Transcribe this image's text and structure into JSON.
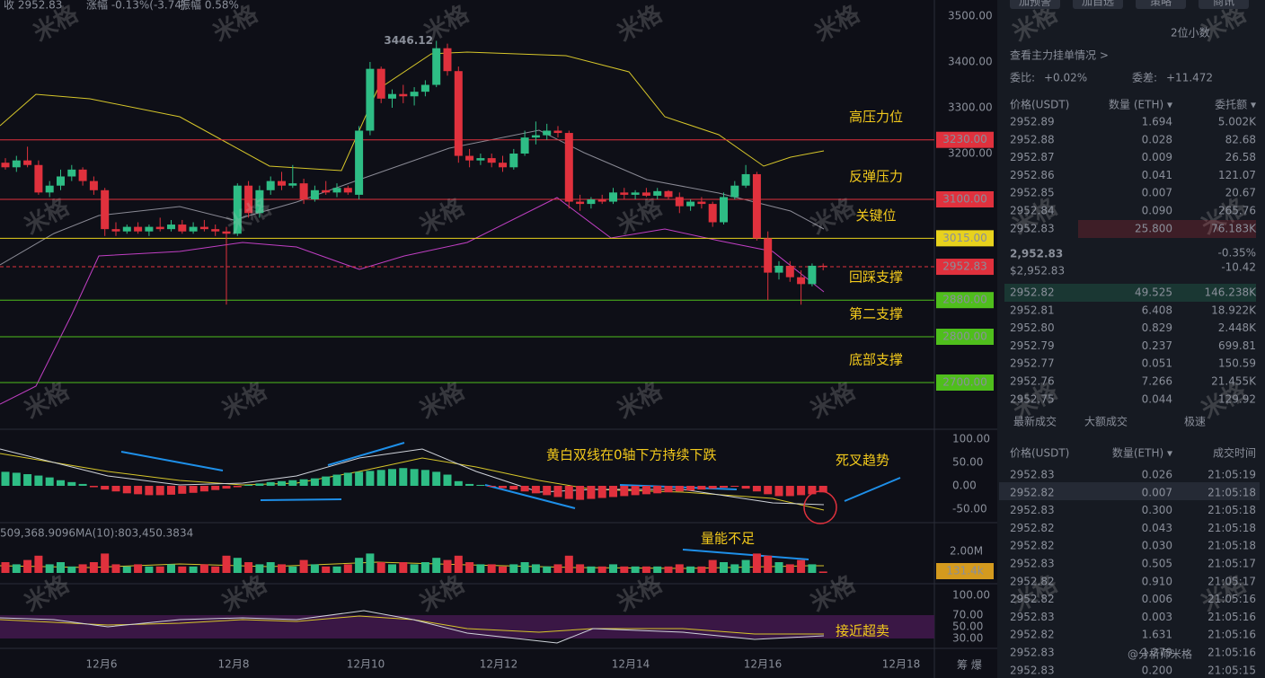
{
  "header": {
    "close": "收 2952.83",
    "change": "涨幅 -0.13%(-3.74)",
    "amplitude": "振幅 0.58%"
  },
  "price_chart": {
    "yticks": [
      {
        "value": 3500,
        "label": "3500.00"
      },
      {
        "value": 3400,
        "label": "3400.00"
      },
      {
        "value": 3300,
        "label": "3300.00"
      },
      {
        "value": 3200,
        "label": "3200.00"
      }
    ],
    "levels": [
      {
        "value": 3230,
        "label": "3230.00",
        "note": "高压力位",
        "color": "#e0313d"
      },
      {
        "value": 3100,
        "label": "3100.00",
        "note": "反弹压力",
        "color": "#e0313d"
      },
      {
        "value": 3015,
        "label": "3015.00",
        "note": "关键位",
        "color": "#e8d21d"
      },
      {
        "value": 2880,
        "label": "2880.00",
        "note": "回踩支撑",
        "color": "#4fbe1c"
      },
      {
        "value": 2800,
        "label": "2800.00",
        "note": "第二支撑",
        "color": "#4fbe1c"
      },
      {
        "value": 2700,
        "label": "2700.00",
        "note": "底部支撑",
        "color": "#4fbe1c"
      }
    ],
    "last_price": 2952.83,
    "dates": [
      "12月6",
      "12月8",
      "12月10",
      "12月12",
      "12月14",
      "12月16",
      "12月18"
    ],
    "candles": [
      [
        3180,
        3190,
        3165,
        3170
      ],
      [
        3170,
        3195,
        3160,
        3185
      ],
      [
        3185,
        3215,
        3170,
        3175
      ],
      [
        3175,
        3185,
        3110,
        3115
      ],
      [
        3115,
        3140,
        3105,
        3130
      ],
      [
        3130,
        3165,
        3120,
        3150
      ],
      [
        3150,
        3175,
        3140,
        3165
      ],
      [
        3165,
        3170,
        3130,
        3140
      ],
      [
        3140,
        3150,
        3110,
        3120
      ],
      [
        3120,
        3125,
        3020,
        3035
      ],
      [
        3035,
        3050,
        3020,
        3030
      ],
      [
        3030,
        3045,
        3025,
        3040
      ],
      [
        3040,
        3050,
        3025,
        3030
      ],
      [
        3030,
        3045,
        3020,
        3040
      ],
      [
        3040,
        3060,
        3030,
        3035
      ],
      [
        3035,
        3055,
        3030,
        3045
      ],
      [
        3045,
        3055,
        3025,
        3030
      ],
      [
        3030,
        3050,
        3025,
        3040
      ],
      [
        3040,
        3055,
        3030,
        3035
      ],
      [
        3035,
        3045,
        3020,
        3030
      ],
      [
        3030,
        3040,
        2870,
        3025
      ],
      [
        3025,
        3135,
        3020,
        3130
      ],
      [
        3130,
        3140,
        3060,
        3070
      ],
      [
        3070,
        3130,
        3060,
        3120
      ],
      [
        3120,
        3150,
        3110,
        3140
      ],
      [
        3140,
        3160,
        3120,
        3130
      ],
      [
        3130,
        3175,
        3125,
        3135
      ],
      [
        3135,
        3145,
        3090,
        3100
      ],
      [
        3100,
        3130,
        3095,
        3120
      ],
      [
        3120,
        3140,
        3110,
        3115
      ],
      [
        3115,
        3135,
        3105,
        3125
      ],
      [
        3125,
        3130,
        3110,
        3115
      ],
      [
        3110,
        3260,
        3100,
        3250
      ],
      [
        3250,
        3400,
        3240,
        3385
      ],
      [
        3385,
        3390,
        3310,
        3320
      ],
      [
        3320,
        3340,
        3300,
        3330
      ],
      [
        3330,
        3350,
        3310,
        3325
      ],
      [
        3325,
        3345,
        3305,
        3335
      ],
      [
        3335,
        3360,
        3325,
        3350
      ],
      [
        3350,
        3446.12,
        3345,
        3430
      ],
      [
        3430,
        3440,
        3370,
        3380
      ],
      [
        3380,
        3390,
        3180,
        3195
      ],
      [
        3195,
        3210,
        3170,
        3185
      ],
      [
        3185,
        3200,
        3175,
        3190
      ],
      [
        3190,
        3200,
        3170,
        3180
      ],
      [
        3180,
        3195,
        3160,
        3170
      ],
      [
        3170,
        3210,
        3165,
        3200
      ],
      [
        3200,
        3250,
        3195,
        3235
      ],
      [
        3235,
        3270,
        3220,
        3240
      ],
      [
        3240,
        3265,
        3230,
        3250
      ],
      [
        3250,
        3260,
        3235,
        3245
      ],
      [
        3245,
        3250,
        3080,
        3095
      ],
      [
        3095,
        3110,
        3075,
        3090
      ],
      [
        3090,
        3105,
        3080,
        3100
      ],
      [
        3100,
        3110,
        3090,
        3095
      ],
      [
        3095,
        3125,
        3090,
        3115
      ],
      [
        3115,
        3125,
        3100,
        3110
      ],
      [
        3110,
        3120,
        3100,
        3115
      ],
      [
        3115,
        3125,
        3105,
        3108
      ],
      [
        3108,
        3125,
        3100,
        3118
      ],
      [
        3118,
        3120,
        3100,
        3105
      ],
      [
        3105,
        3115,
        3070,
        3085
      ],
      [
        3085,
        3100,
        3075,
        3095
      ],
      [
        3095,
        3105,
        3080,
        3090
      ],
      [
        3090,
        3095,
        3040,
        3050
      ],
      [
        3050,
        3115,
        3045,
        3105
      ],
      [
        3105,
        3140,
        3100,
        3130
      ],
      [
        3130,
        3175,
        3125,
        3155
      ],
      [
        3155,
        3160,
        3010,
        3015
      ],
      [
        3015,
        3030,
        2880,
        2940
      ],
      [
        2940,
        2965,
        2925,
        2955
      ],
      [
        2955,
        2965,
        2920,
        2930
      ],
      [
        2930,
        2945,
        2870,
        2915
      ],
      [
        2915,
        2960,
        2910,
        2955
      ],
      [
        2955,
        2960,
        2945,
        2952.83
      ]
    ]
  },
  "macd": {
    "yticks": [
      {
        "value": 100,
        "label": "100.00"
      },
      {
        "value": 50,
        "label": "50.00"
      },
      {
        "value": 0,
        "label": "0.00"
      },
      {
        "value": -50,
        "label": "-50.00"
      }
    ],
    "hist": [
      30,
      28,
      25,
      22,
      18,
      12,
      8,
      4,
      -3,
      -8,
      -12,
      -16,
      -18,
      -20,
      -20,
      -19,
      -17,
      -15,
      -12,
      -9,
      -6,
      -3,
      2,
      5,
      8,
      10,
      12,
      14,
      16,
      20,
      24,
      28,
      30,
      32,
      34,
      36,
      38,
      36,
      34,
      30,
      24,
      10,
      4,
      2,
      -2,
      -5,
      -8,
      -12,
      -16,
      -20,
      -24,
      -28,
      -30,
      -28,
      -26,
      -24,
      -22,
      -20,
      -18,
      -16,
      -14,
      -12,
      -10,
      -8,
      -6,
      -4,
      -2,
      -6,
      -12,
      -18,
      -22,
      -22,
      -20,
      -18,
      -14
    ]
  },
  "volume": {
    "ma5": "509,368.9096",
    "ma10": "MA(10):803,450.3834",
    "ytick": {
      "value": 2,
      "label": "2.00M"
    },
    "current": {
      "value": 0.1314,
      "label": "131.4k"
    },
    "values": [
      1.0,
      0.8,
      1.2,
      1.6,
      0.8,
      1.0,
      0.6,
      0.8,
      1.0,
      1.8,
      0.8,
      0.6,
      0.8,
      0.6,
      0.6,
      0.8,
      0.6,
      0.6,
      0.8,
      0.6,
      1.6,
      1.4,
      1.0,
      0.8,
      1.0,
      0.8,
      0.6,
      1.2,
      0.8,
      0.6,
      0.6,
      0.8,
      1.4,
      1.8,
      1.0,
      0.8,
      1.0,
      0.8,
      1.0,
      1.4,
      1.2,
      1.6,
      1.0,
      0.8,
      0.8,
      0.6,
      0.8,
      1.0,
      0.8,
      0.6,
      0.8,
      1.6,
      0.8,
      0.6,
      0.6,
      0.8,
      0.6,
      0.6,
      0.6,
      0.6,
      0.6,
      0.8,
      0.6,
      0.6,
      1.2,
      1.0,
      0.8,
      1.2,
      1.8,
      1.6,
      1.0,
      0.8,
      1.2,
      0.8,
      0.1314
    ]
  },
  "rsi": {
    "yticks": [
      {
        "value": 100,
        "label": "100.00"
      },
      {
        "value": 70,
        "label": "70.00"
      },
      {
        "value": 50,
        "label": "50.00"
      },
      {
        "value": 30,
        "label": "30.00"
      }
    ]
  },
  "annotations": {
    "macd": "黄白双线在0轴下方持续下跌",
    "cross": "死叉趋势",
    "volume": "量能不足",
    "rsi": "接近超卖"
  },
  "watermark": "米格",
  "signature": "@分析师米格",
  "axis_tools": "筹 爆",
  "panel": {
    "buttons": [
      "加预警",
      "加自选",
      "策略",
      "商讯"
    ],
    "precision": "2位小数",
    "main_orders": "查看主力挂单情况 >",
    "ratio": "委比: ",
    "ratio_value": "+0.02%",
    "diff": "委差: ",
    "diff_value": "+11.472",
    "book_header": [
      "价格(USDT)",
      "数量 (ETH) ▾",
      "委托额 ▾"
    ],
    "asks": [
      [
        "2952.89",
        "1.694",
        "5.002K"
      ],
      [
        "2952.88",
        "0.028",
        "82.68"
      ],
      [
        "2952.87",
        "0.009",
        "26.58"
      ],
      [
        "2952.86",
        "0.041",
        "121.07"
      ],
      [
        "2952.85",
        "0.007",
        "20.67"
      ],
      [
        "2952.84",
        "0.090",
        "265.76"
      ],
      [
        "2952.83",
        "25.800",
        "76.183K"
      ]
    ],
    "mid": {
      "price": "2,952.83",
      "usd": "$2,952.83",
      "pct": "-0.35%",
      "chg": "-10.42"
    },
    "bids": [
      [
        "2952.82",
        "49.525",
        "146.238K"
      ],
      [
        "2952.81",
        "6.408",
        "18.922K"
      ],
      [
        "2952.80",
        "0.829",
        "2.448K"
      ],
      [
        "2952.79",
        "0.237",
        "699.81"
      ],
      [
        "2952.77",
        "0.051",
        "150.59"
      ],
      [
        "2952.76",
        "7.266",
        "21.455K"
      ],
      [
        "2952.75",
        "0.044",
        "129.92"
      ]
    ],
    "tabs": [
      "最新成交",
      "大额成交",
      "极速"
    ],
    "trade_header": [
      "价格(USDT)",
      "数量(ETH) ▾",
      "成交时间"
    ],
    "trades": [
      [
        "2952.83",
        "0.026",
        "21:05:19",
        "up"
      ],
      [
        "2952.82",
        "0.007",
        "21:05:18",
        "down"
      ],
      [
        "2952.83",
        "0.300",
        "21:05:18",
        "up"
      ],
      [
        "2952.82",
        "0.043",
        "21:05:18",
        "down"
      ],
      [
        "2952.82",
        "0.030",
        "21:05:18",
        "down"
      ],
      [
        "2952.83",
        "0.505",
        "21:05:17",
        "up"
      ],
      [
        "2952.82",
        "0.910",
        "21:05:17",
        "down"
      ],
      [
        "2952.82",
        "0.006",
        "21:05:16",
        "down"
      ],
      [
        "2952.83",
        "0.003",
        "21:05:16",
        "up"
      ],
      [
        "2952.82",
        "1.631",
        "21:05:16",
        "down"
      ],
      [
        "2952.83",
        "1.279",
        "21:05:16",
        "up"
      ],
      [
        "2952.83",
        "0.200",
        "21:05:15",
        "up"
      ]
    ]
  }
}
